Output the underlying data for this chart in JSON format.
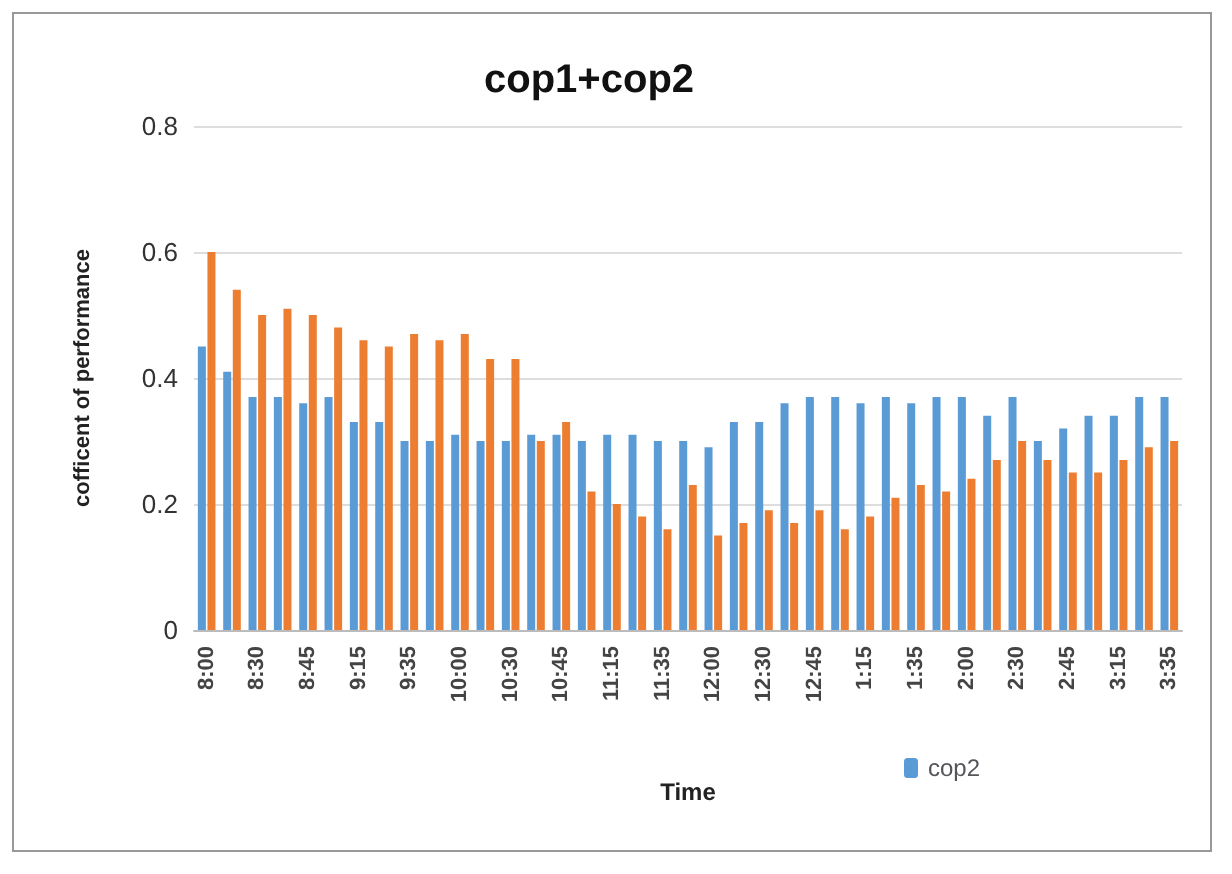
{
  "chart_data": {
    "type": "bar",
    "title": "cop1+cop2",
    "xlabel": "Time",
    "ylabel": "cofficent of performance",
    "categories": [
      "8:00",
      null,
      "8:30",
      null,
      "8:45",
      null,
      "9:15",
      null,
      "9:35",
      null,
      "10:00",
      null,
      "10:30",
      null,
      "10:45",
      null,
      "11:15",
      null,
      "11:35",
      null,
      "12:00",
      null,
      "12:30",
      null,
      "12:45",
      null,
      "1:15",
      null,
      "1:35",
      null,
      "2:00",
      null,
      "2:30",
      null,
      "2:45",
      null,
      "3:15",
      null,
      "3:35"
    ],
    "series": [
      {
        "name": "cop2",
        "color": "#5b9bd5",
        "values": [
          0.45,
          0.41,
          0.37,
          0.37,
          0.36,
          0.37,
          0.33,
          0.33,
          0.3,
          0.3,
          0.31,
          0.3,
          0.3,
          0.31,
          0.31,
          0.3,
          0.31,
          0.31,
          0.3,
          0.3,
          0.29,
          0.33,
          0.33,
          0.36,
          0.37,
          0.37,
          0.36,
          0.37,
          0.36,
          0.37,
          0.37,
          0.34,
          0.37,
          0.3,
          0.32,
          0.34,
          0.34,
          0.37,
          0.37
        ]
      },
      {
        "color": "#ed7d31",
        "values": [
          0.6,
          0.54,
          0.5,
          0.51,
          0.5,
          0.48,
          0.46,
          0.45,
          0.47,
          0.46,
          0.47,
          0.43,
          0.43,
          0.3,
          0.33,
          0.22,
          0.2,
          0.18,
          0.16,
          0.23,
          0.15,
          0.17,
          0.19,
          0.17,
          0.19,
          0.16,
          0.18,
          0.21,
          0.23,
          0.22,
          0.24,
          0.27,
          0.3,
          0.27,
          0.25,
          0.25,
          0.27,
          0.29,
          0.3
        ]
      }
    ],
    "ylim": [
      0,
      0.8
    ],
    "yticks": [
      0,
      0.2,
      0.4,
      0.6,
      0.8
    ],
    "grid": "y",
    "legend": "bottom"
  }
}
